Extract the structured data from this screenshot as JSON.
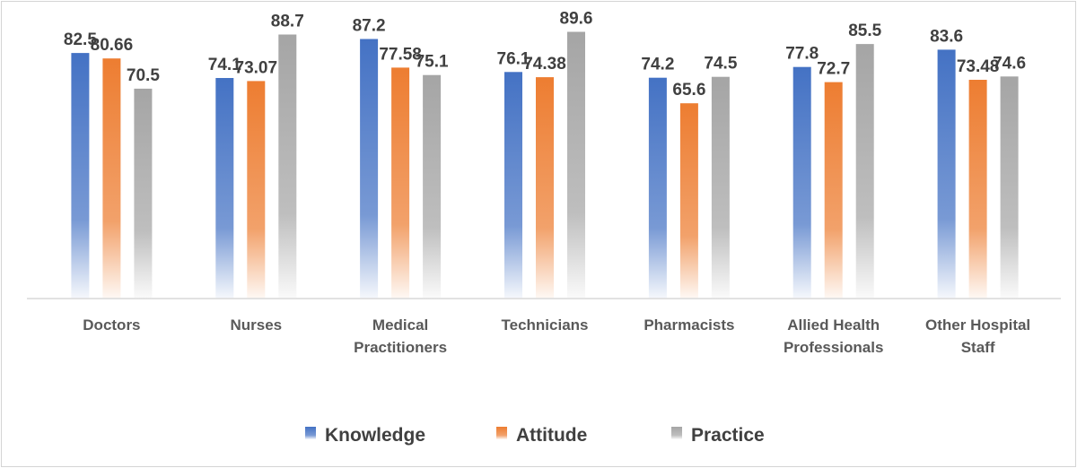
{
  "chart_data": {
    "type": "bar",
    "categories": [
      [
        "Doctors"
      ],
      [
        "Nurses"
      ],
      [
        "Medical",
        "Practitioners"
      ],
      [
        "Technicians"
      ],
      [
        "Pharmacists"
      ],
      [
        "Allied Health",
        "Professionals"
      ],
      [
        "Other Hospital",
        "Staff"
      ]
    ],
    "series": [
      {
        "name": "Knowledge",
        "values": [
          82.5,
          74.1,
          87.2,
          76.1,
          74.2,
          77.8,
          83.6
        ],
        "labels": [
          "82.5",
          "74.1",
          "87.2",
          "76.1",
          "74.2",
          "77.8",
          "83.6"
        ],
        "color": "#4472c4"
      },
      {
        "name": "Attitude",
        "values": [
          80.66,
          73.07,
          77.58,
          74.38,
          65.6,
          72.7,
          73.48
        ],
        "labels": [
          "80.66",
          "73.07",
          "77.58",
          "74.38",
          "65.6",
          "72.7",
          "73.48"
        ],
        "color": "#ed7d31"
      },
      {
        "name": "Practice",
        "values": [
          70.5,
          88.7,
          75.1,
          89.6,
          74.5,
          85.5,
          74.6
        ],
        "labels": [
          "70.5",
          "88.7",
          "75.1",
          "89.6",
          "74.5",
          "85.5",
          "74.6"
        ],
        "color": "#a5a5a5"
      }
    ],
    "ylim": [
      0,
      100
    ],
    "grid": false,
    "legend_position": "bottom",
    "bar_fill": "gradient-fade-to-white"
  }
}
